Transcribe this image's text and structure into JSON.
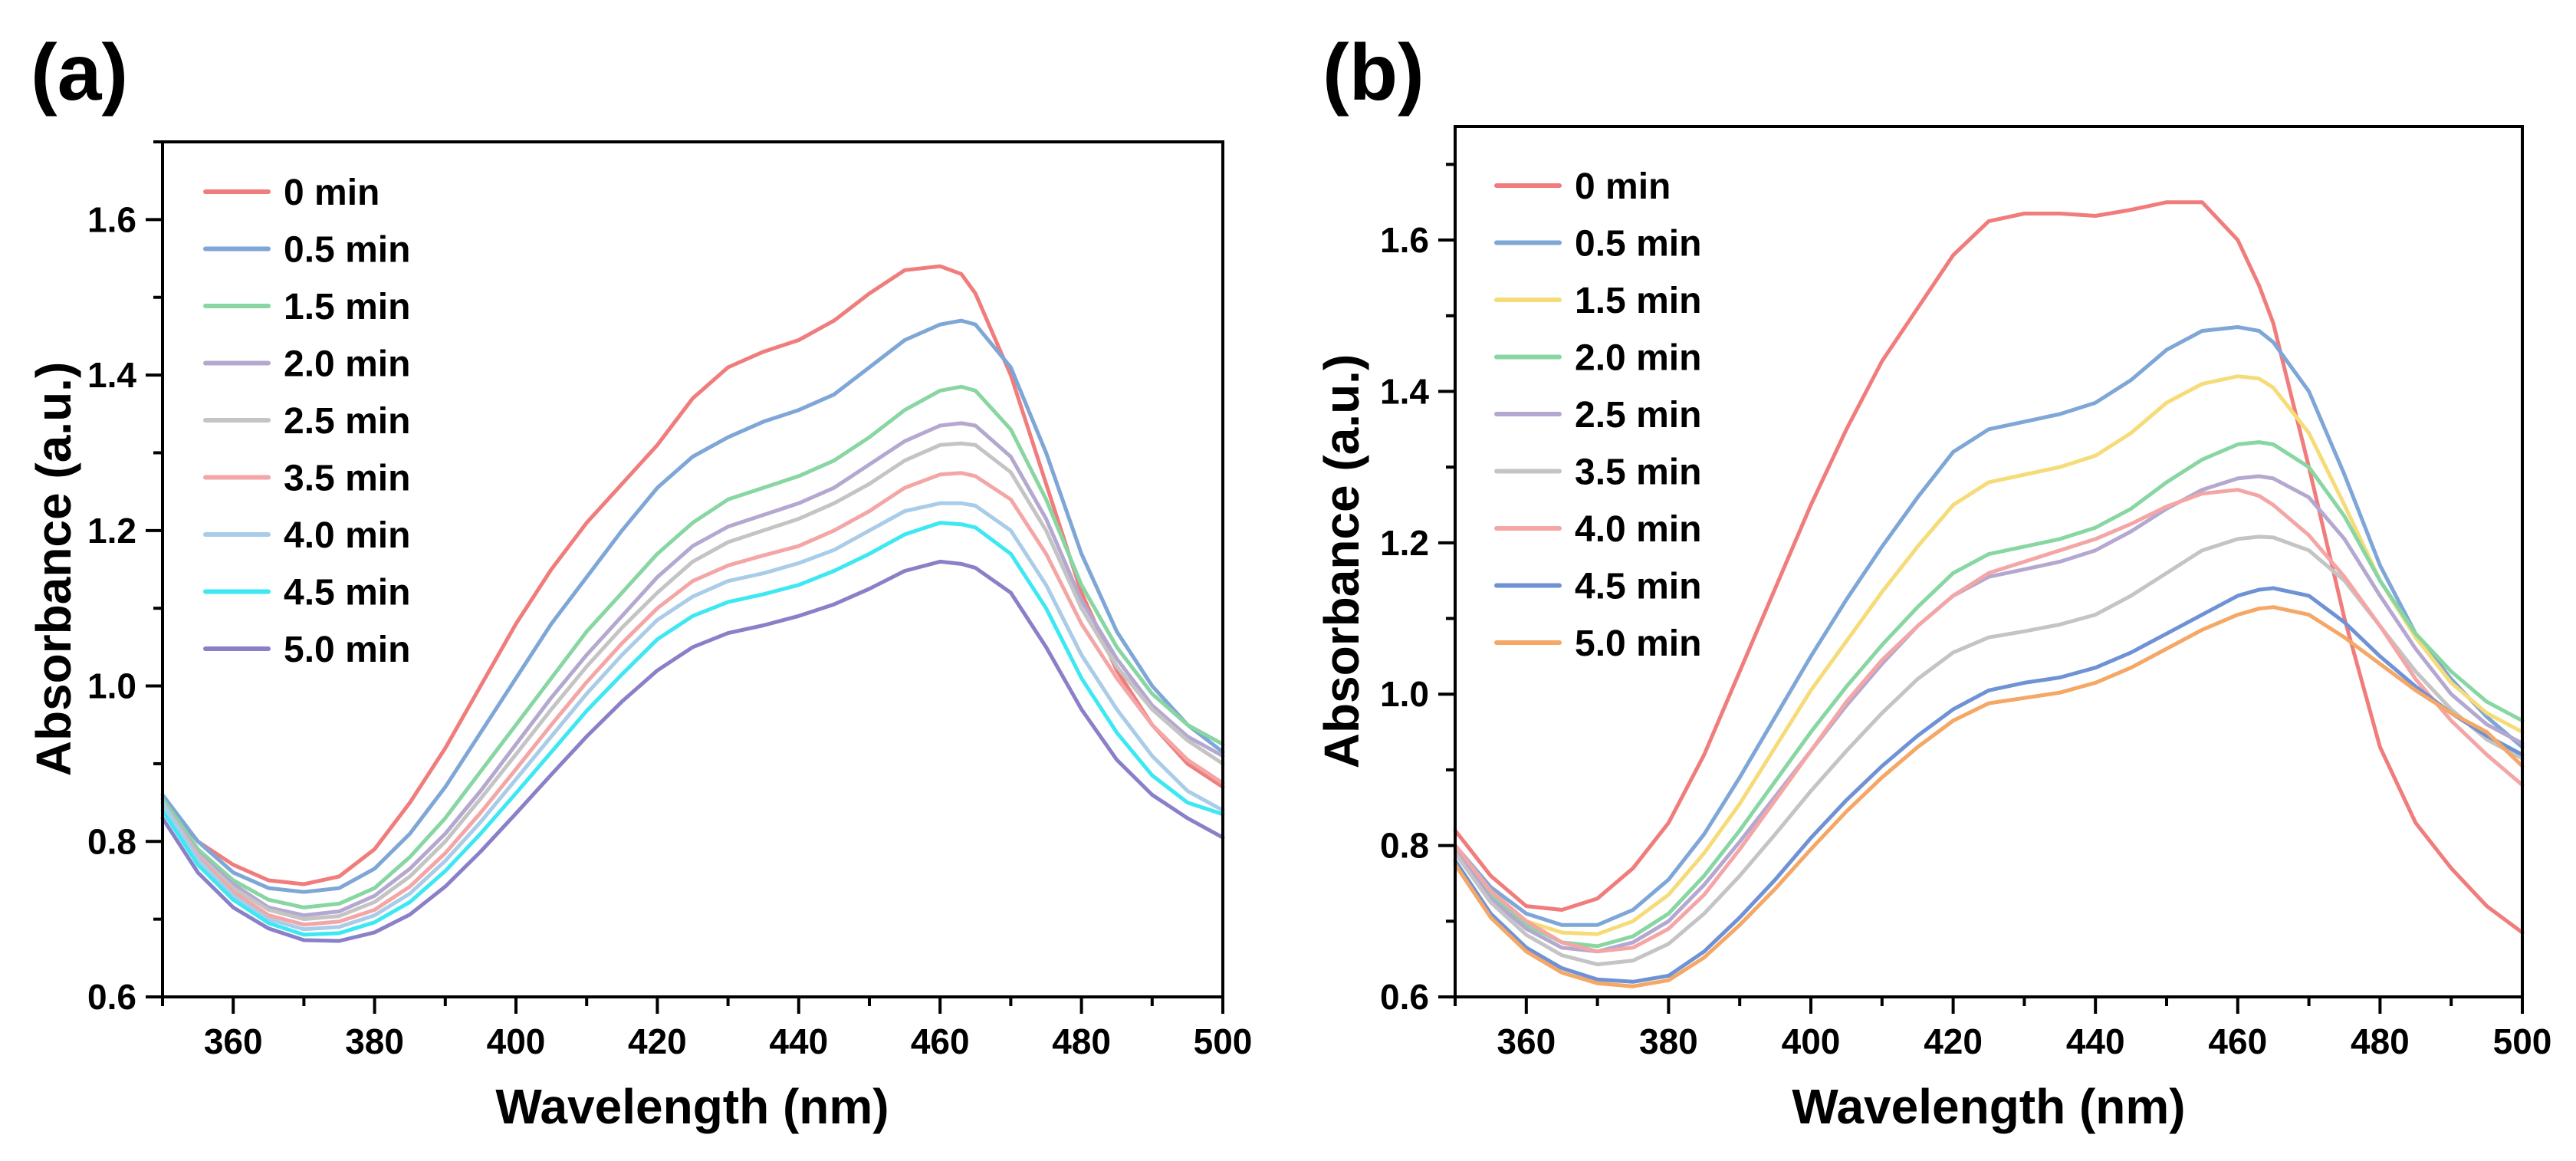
{
  "chart_data": [
    {
      "panel_label": "(a)",
      "type": "line",
      "xlabel": "Wavelength (nm)",
      "ylabel": "Absorbance (a.u.)",
      "xlim": [
        350,
        500
      ],
      "ylim": [
        0.6,
        1.7
      ],
      "xticks": [
        360,
        380,
        400,
        420,
        440,
        460,
        480,
        500
      ],
      "xtick_labels": [
        "360",
        "380",
        "400",
        "420",
        "440",
        "460",
        "480",
        "500"
      ],
      "yticks": [
        0.6,
        0.8,
        1.0,
        1.2,
        1.4,
        1.6
      ],
      "ytick_labels": [
        "0.6",
        "0.8",
        "1.0",
        "1.2",
        "1.4",
        "1.6"
      ],
      "grid": false,
      "legend_position": "top-left",
      "x": [
        350,
        355,
        360,
        365,
        370,
        375,
        380,
        385,
        390,
        395,
        400,
        405,
        410,
        415,
        420,
        425,
        430,
        435,
        440,
        445,
        450,
        455,
        460,
        463,
        465,
        470,
        475,
        480,
        485,
        490,
        495,
        500
      ],
      "series": [
        {
          "name": "0 min",
          "color": "#F07C7C",
          "values": [
            0.855,
            0.8,
            0.77,
            0.75,
            0.745,
            0.755,
            0.79,
            0.85,
            0.92,
            1.0,
            1.08,
            1.15,
            1.21,
            1.26,
            1.31,
            1.37,
            1.41,
            1.43,
            1.445,
            1.47,
            1.505,
            1.535,
            1.54,
            1.53,
            1.505,
            1.4,
            1.26,
            1.12,
            1.02,
            0.95,
            0.9,
            0.87
          ]
        },
        {
          "name": "0.5 min",
          "color": "#7EA6D6",
          "values": [
            0.86,
            0.8,
            0.76,
            0.74,
            0.735,
            0.74,
            0.765,
            0.81,
            0.87,
            0.94,
            1.01,
            1.08,
            1.14,
            1.2,
            1.255,
            1.295,
            1.32,
            1.34,
            1.355,
            1.375,
            1.41,
            1.445,
            1.465,
            1.47,
            1.465,
            1.41,
            1.3,
            1.17,
            1.07,
            1.0,
            0.95,
            0.915
          ]
        },
        {
          "name": "1.5 min",
          "color": "#88D6A2",
          "values": [
            0.855,
            0.79,
            0.75,
            0.725,
            0.715,
            0.72,
            0.74,
            0.78,
            0.83,
            0.89,
            0.95,
            1.01,
            1.07,
            1.12,
            1.17,
            1.21,
            1.24,
            1.255,
            1.27,
            1.29,
            1.32,
            1.355,
            1.38,
            1.385,
            1.38,
            1.33,
            1.24,
            1.13,
            1.05,
            0.99,
            0.95,
            0.925
          ]
        },
        {
          "name": "2.0 min",
          "color": "#B4A8D0",
          "values": [
            0.85,
            0.785,
            0.745,
            0.715,
            0.705,
            0.71,
            0.73,
            0.765,
            0.81,
            0.865,
            0.925,
            0.985,
            1.04,
            1.09,
            1.14,
            1.18,
            1.205,
            1.22,
            1.235,
            1.255,
            1.285,
            1.315,
            1.335,
            1.338,
            1.335,
            1.295,
            1.215,
            1.11,
            1.035,
            0.975,
            0.935,
            0.91
          ]
        },
        {
          "name": "2.5 min",
          "color": "#C4C4C4",
          "values": [
            0.85,
            0.783,
            0.74,
            0.712,
            0.7,
            0.704,
            0.722,
            0.755,
            0.8,
            0.855,
            0.912,
            0.97,
            1.025,
            1.075,
            1.12,
            1.16,
            1.185,
            1.2,
            1.215,
            1.235,
            1.26,
            1.29,
            1.31,
            1.312,
            1.31,
            1.275,
            1.2,
            1.1,
            1.025,
            0.97,
            0.93,
            0.9
          ]
        },
        {
          "name": "3.5 min",
          "color": "#F4A6A6",
          "values": [
            0.85,
            0.78,
            0.735,
            0.705,
            0.693,
            0.697,
            0.712,
            0.742,
            0.785,
            0.837,
            0.893,
            0.95,
            1.005,
            1.055,
            1.1,
            1.135,
            1.155,
            1.168,
            1.18,
            1.2,
            1.225,
            1.255,
            1.272,
            1.274,
            1.27,
            1.24,
            1.17,
            1.08,
            1.01,
            0.95,
            0.905,
            0.875
          ]
        },
        {
          "name": "4.0 min",
          "color": "#A9CCE8",
          "values": [
            0.85,
            0.777,
            0.73,
            0.7,
            0.687,
            0.69,
            0.705,
            0.733,
            0.775,
            0.825,
            0.88,
            0.935,
            0.99,
            1.04,
            1.085,
            1.115,
            1.135,
            1.145,
            1.158,
            1.175,
            1.2,
            1.225,
            1.235,
            1.235,
            1.232,
            1.2,
            1.13,
            1.04,
            0.97,
            0.91,
            0.865,
            0.84
          ]
        },
        {
          "name": "4.5 min",
          "color": "#3DE8F2",
          "values": [
            0.84,
            0.77,
            0.725,
            0.695,
            0.68,
            0.682,
            0.696,
            0.722,
            0.762,
            0.81,
            0.862,
            0.915,
            0.968,
            1.015,
            1.06,
            1.09,
            1.108,
            1.118,
            1.13,
            1.148,
            1.17,
            1.195,
            1.21,
            1.208,
            1.204,
            1.17,
            1.1,
            1.01,
            0.94,
            0.885,
            0.85,
            0.835
          ]
        },
        {
          "name": "5.0 min",
          "color": "#8A80C8",
          "values": [
            0.83,
            0.76,
            0.715,
            0.688,
            0.673,
            0.672,
            0.683,
            0.706,
            0.742,
            0.787,
            0.836,
            0.886,
            0.935,
            0.98,
            1.02,
            1.05,
            1.068,
            1.078,
            1.09,
            1.105,
            1.125,
            1.148,
            1.16,
            1.157,
            1.152,
            1.12,
            1.05,
            0.97,
            0.905,
            0.86,
            0.83,
            0.805
          ]
        }
      ]
    },
    {
      "panel_label": "(b)",
      "type": "line",
      "xlabel": "Wavelength (nm)",
      "ylabel": "Absorbance (a.u.)",
      "xlim": [
        350,
        500
      ],
      "ylim": [
        0.6,
        1.75
      ],
      "xticks": [
        360,
        380,
        400,
        420,
        440,
        460,
        480,
        500
      ],
      "xtick_labels": [
        "360",
        "380",
        "400",
        "420",
        "440",
        "460",
        "480",
        "500"
      ],
      "yticks": [
        0.6,
        0.8,
        1.0,
        1.2,
        1.4,
        1.6
      ],
      "ytick_labels": [
        "0.6",
        "0.8",
        "1.0",
        "1.2",
        "1.4",
        "1.6"
      ],
      "grid": false,
      "legend_position": "top-left",
      "x": [
        350,
        355,
        360,
        365,
        370,
        375,
        380,
        385,
        390,
        395,
        400,
        405,
        410,
        415,
        420,
        425,
        430,
        435,
        440,
        445,
        450,
        455,
        460,
        463,
        465,
        470,
        475,
        480,
        485,
        490,
        495,
        500
      ],
      "series": [
        {
          "name": "0 min",
          "color": "#F07C7C",
          "values": [
            0.82,
            0.76,
            0.72,
            0.715,
            0.73,
            0.77,
            0.83,
            0.92,
            1.03,
            1.14,
            1.25,
            1.35,
            1.44,
            1.51,
            1.58,
            1.625,
            1.635,
            1.635,
            1.632,
            1.64,
            1.65,
            1.65,
            1.6,
            1.54,
            1.49,
            1.3,
            1.1,
            0.93,
            0.83,
            0.77,
            0.72,
            0.685
          ]
        },
        {
          "name": "0.5 min",
          "color": "#7EA6D6",
          "values": [
            0.8,
            0.745,
            0.71,
            0.695,
            0.695,
            0.715,
            0.755,
            0.815,
            0.89,
            0.97,
            1.05,
            1.125,
            1.195,
            1.26,
            1.32,
            1.35,
            1.36,
            1.37,
            1.385,
            1.415,
            1.455,
            1.48,
            1.485,
            1.48,
            1.465,
            1.4,
            1.29,
            1.17,
            1.08,
            1.02,
            0.97,
            0.93
          ]
        },
        {
          "name": "1.5 min",
          "color": "#F5DC78",
          "values": [
            0.8,
            0.74,
            0.7,
            0.685,
            0.683,
            0.7,
            0.735,
            0.79,
            0.855,
            0.93,
            1.005,
            1.07,
            1.135,
            1.195,
            1.25,
            1.28,
            1.29,
            1.3,
            1.315,
            1.345,
            1.385,
            1.41,
            1.42,
            1.417,
            1.405,
            1.345,
            1.25,
            1.15,
            1.075,
            1.015,
            0.975,
            0.95
          ]
        },
        {
          "name": "2.0 min",
          "color": "#88D6A2",
          "values": [
            0.8,
            0.735,
            0.695,
            0.672,
            0.667,
            0.68,
            0.71,
            0.76,
            0.82,
            0.885,
            0.95,
            1.01,
            1.065,
            1.115,
            1.16,
            1.185,
            1.195,
            1.205,
            1.22,
            1.245,
            1.28,
            1.31,
            1.33,
            1.333,
            1.33,
            1.3,
            1.235,
            1.15,
            1.08,
            1.03,
            0.99,
            0.965
          ]
        },
        {
          "name": "2.5 min",
          "color": "#B4A8D0",
          "values": [
            0.795,
            0.73,
            0.69,
            0.665,
            0.66,
            0.672,
            0.7,
            0.748,
            0.805,
            0.865,
            0.925,
            0.985,
            1.04,
            1.09,
            1.13,
            1.155,
            1.165,
            1.175,
            1.19,
            1.215,
            1.245,
            1.27,
            1.285,
            1.288,
            1.285,
            1.26,
            1.205,
            1.13,
            1.06,
            1.0,
            0.96,
            0.935
          ]
        },
        {
          "name": "3.5 min",
          "color": "#C4C4C4",
          "values": [
            0.79,
            0.725,
            0.682,
            0.655,
            0.643,
            0.648,
            0.67,
            0.71,
            0.76,
            0.815,
            0.872,
            0.925,
            0.975,
            1.02,
            1.055,
            1.075,
            1.083,
            1.092,
            1.105,
            1.13,
            1.16,
            1.19,
            1.205,
            1.208,
            1.207,
            1.19,
            1.15,
            1.09,
            1.03,
            0.98,
            0.94,
            0.915
          ]
        },
        {
          "name": "4.0 min",
          "color": "#F4A6A6",
          "values": [
            0.8,
            0.74,
            0.7,
            0.672,
            0.66,
            0.665,
            0.69,
            0.735,
            0.795,
            0.86,
            0.925,
            0.99,
            1.045,
            1.09,
            1.13,
            1.16,
            1.175,
            1.19,
            1.205,
            1.225,
            1.248,
            1.265,
            1.27,
            1.262,
            1.25,
            1.21,
            1.155,
            1.09,
            1.02,
            0.965,
            0.92,
            0.88
          ]
        },
        {
          "name": "4.5 min",
          "color": "#6F92D4",
          "values": [
            0.78,
            0.71,
            0.665,
            0.638,
            0.623,
            0.62,
            0.628,
            0.66,
            0.705,
            0.755,
            0.81,
            0.86,
            0.905,
            0.945,
            0.98,
            1.005,
            1.015,
            1.022,
            1.035,
            1.055,
            1.08,
            1.105,
            1.13,
            1.138,
            1.14,
            1.13,
            1.095,
            1.05,
            1.01,
            0.975,
            0.945,
            0.92
          ]
        },
        {
          "name": "5.0 min",
          "color": "#F5A765",
          "values": [
            0.775,
            0.705,
            0.66,
            0.632,
            0.618,
            0.614,
            0.622,
            0.652,
            0.695,
            0.743,
            0.795,
            0.845,
            0.89,
            0.93,
            0.965,
            0.988,
            0.995,
            1.002,
            1.015,
            1.035,
            1.06,
            1.085,
            1.105,
            1.113,
            1.115,
            1.105,
            1.075,
            1.04,
            1.005,
            0.975,
            0.95,
            0.905
          ]
        }
      ]
    }
  ]
}
